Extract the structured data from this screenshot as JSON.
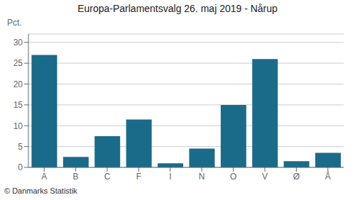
{
  "chart_data": {
    "type": "bar",
    "title": "Europa-Parlamentsvalg 26. maj 2019 - Nårup",
    "categories": [
      "A",
      "B",
      "C",
      "F",
      "I",
      "N",
      "O",
      "V",
      "Ø",
      "Å"
    ],
    "values": [
      27.0,
      2.5,
      7.5,
      11.5,
      1.0,
      4.5,
      15.0,
      26.0,
      1.5,
      3.5
    ],
    "color": "#1a6b8a",
    "ylim": [
      0,
      32
    ],
    "yticks": [
      0,
      5,
      10,
      15,
      20,
      25,
      30
    ],
    "grid": true,
    "ylabel": "Pct.",
    "annotations": [
      "© Danmarks Statistik"
    ]
  }
}
